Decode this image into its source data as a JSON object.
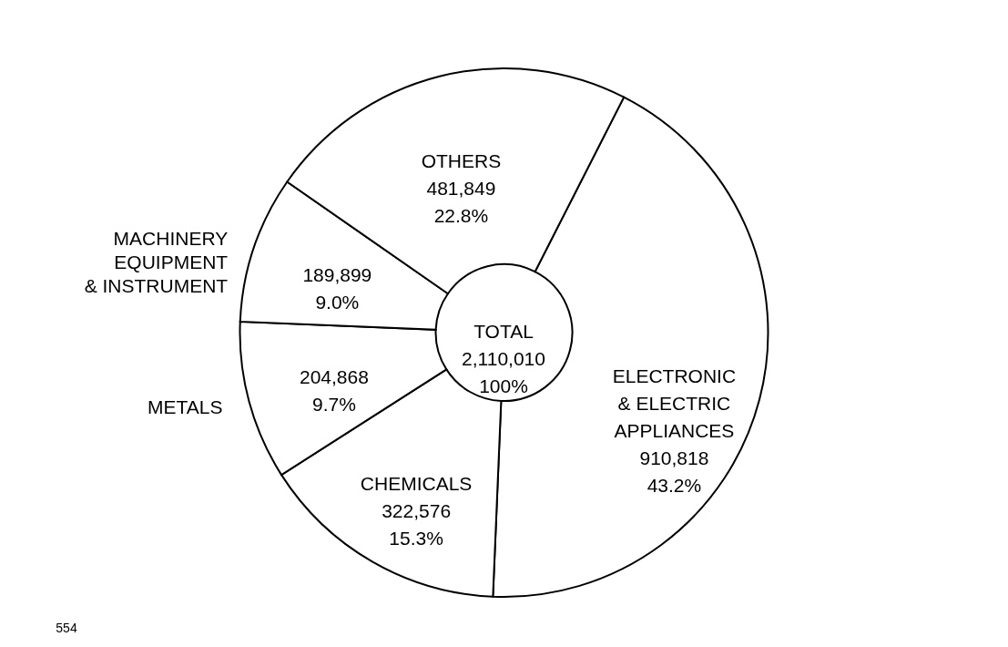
{
  "chart_data": {
    "type": "donut",
    "categories": [
      "ELECTRONIC\n& ELECTRIC\nAPPLIANCES",
      "CHEMICALS",
      "METALS",
      "MACHINERY\nEQUIPMENT\n& INSTRUMENT",
      "OTHERS"
    ],
    "values": [
      910818,
      322576,
      204868,
      189899,
      481849
    ],
    "value_labels": [
      "910,818\n43.2%",
      "322,576\n15.3%",
      "204,868\n9.7%",
      "189,899\n9.0%",
      "481,849\n22.8%"
    ],
    "colors": [
      "#ffffff",
      "#ffffff",
      "#ffffff",
      "#ffffff",
      "#ffffff"
    ],
    "annotations": [
      "TOTAL\n2,110,010\n100%",
      "554"
    ]
  }
}
